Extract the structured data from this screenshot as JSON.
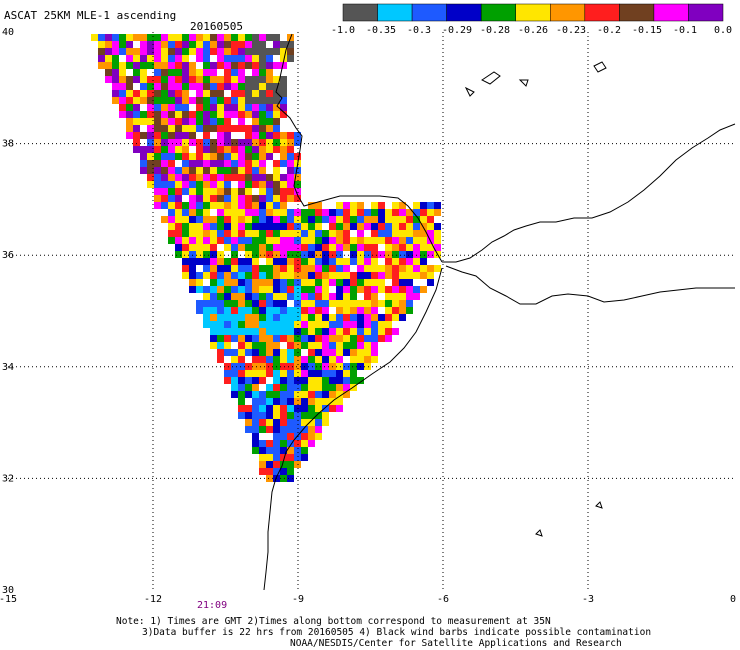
{
  "header": {
    "title": "ASCAT 25KM MLE-1 ascending",
    "date": "20160505"
  },
  "colorbar": {
    "labels": [
      "-1.0",
      "-0.35",
      "-0.3",
      "-0.29",
      "-0.28",
      "-0.26",
      "-0.23",
      "-0.2",
      "-0.15",
      "-0.1",
      "0.0"
    ],
    "colors": [
      "#555555",
      "#00c8ff",
      "#1e5aff",
      "#0000c8",
      "#00a000",
      "#ffe600",
      "#ff9600",
      "#ff1e1e",
      "#704020",
      "#ff00ff",
      "#8000c0"
    ]
  },
  "map": {
    "lon_range": [
      -15,
      0
    ],
    "lat_range": [
      30,
      40
    ],
    "lon_ticks": [
      "-15",
      "-12",
      "-9",
      "-6",
      "-3",
      "0"
    ],
    "lat_ticks": [
      "40",
      "38",
      "36",
      "34",
      "32",
      "30"
    ],
    "time_label": "21:09"
  },
  "notes": {
    "line1": "Note: 1) Times are GMT 2)Times along bottom correspond to measurement at 35N",
    "line2": "3)Data buffer is 22 hrs from 20160505 4) Black wind barbs indicate possible contamination",
    "line3": "NOAA/NESDIS/Center for Satellite Applications and Research"
  }
}
